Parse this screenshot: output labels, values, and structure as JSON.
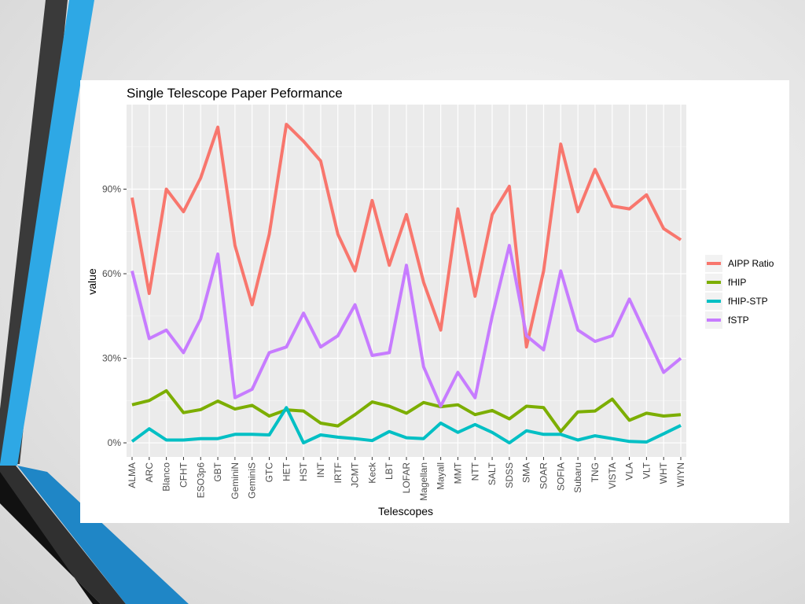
{
  "chart_data": {
    "type": "line",
    "title": "Single Telescope Paper Peformance",
    "xlabel": "Telescopes",
    "ylabel": "value",
    "ylim": [
      -0.05,
      1.2
    ],
    "yticks": [
      0,
      0.3,
      0.6,
      0.9
    ],
    "ytick_labels": [
      "0%",
      "30%",
      "60%",
      "90%"
    ],
    "grid": true,
    "legend_position": "right",
    "categories": [
      "ALMA",
      "ARC",
      "Blanco",
      "CFHT",
      "ESO3p6",
      "GBT",
      "GeminiN",
      "GeminiS",
      "GTC",
      "HET",
      "HST",
      "INT",
      "IRTF",
      "JCMT",
      "Keck",
      "LBT",
      "LOFAR",
      "Magellan",
      "Mayall",
      "MMT",
      "NTT",
      "SALT",
      "SDSS",
      "SMA",
      "SOAR",
      "SOFIA",
      "Subaru",
      "TNG",
      "VISTA",
      "VLA",
      "VLT",
      "WHT",
      "WIYN"
    ],
    "series": [
      {
        "name": "AIPP Ratio",
        "color": "#F8766D",
        "values": [
          0.87,
          0.53,
          0.9,
          0.82,
          0.94,
          1.12,
          0.7,
          0.49,
          0.74,
          1.13,
          1.07,
          1.0,
          0.74,
          0.61,
          0.86,
          0.63,
          0.81,
          0.57,
          0.4,
          0.83,
          0.52,
          0.81,
          0.91,
          0.34,
          0.61,
          1.06,
          0.82,
          0.97,
          0.84,
          0.83,
          0.88,
          0.76,
          0.72
        ]
      },
      {
        "name": "fHIP",
        "color": "#7CAE00",
        "values": [
          0.135,
          0.15,
          0.185,
          0.107,
          0.118,
          0.148,
          0.12,
          0.133,
          0.095,
          0.117,
          0.113,
          0.07,
          0.06,
          0.1,
          0.145,
          0.13,
          0.105,
          0.143,
          0.128,
          0.135,
          0.1,
          0.115,
          0.085,
          0.13,
          0.125,
          0.04,
          0.11,
          0.113,
          0.155,
          0.08,
          0.105,
          0.095,
          0.1
        ]
      },
      {
        "name": "fHIP-STP",
        "color": "#00BFC4",
        "values": [
          0.005,
          0.05,
          0.01,
          0.01,
          0.015,
          0.015,
          0.03,
          0.03,
          0.028,
          0.125,
          0.0,
          0.028,
          0.02,
          0.015,
          0.008,
          0.04,
          0.018,
          0.015,
          0.07,
          0.037,
          0.065,
          0.037,
          0.0,
          0.043,
          0.03,
          0.03,
          0.01,
          0.025,
          0.015,
          0.005,
          0.003,
          0.032,
          0.062
        ]
      },
      {
        "name": "fSTP",
        "color": "#C77CFF",
        "values": [
          0.61,
          0.37,
          0.4,
          0.32,
          0.44,
          0.67,
          0.16,
          0.19,
          0.32,
          0.34,
          0.46,
          0.34,
          0.38,
          0.49,
          0.31,
          0.32,
          0.63,
          0.27,
          0.13,
          0.25,
          0.16,
          0.45,
          0.7,
          0.38,
          0.33,
          0.61,
          0.4,
          0.36,
          0.38,
          0.51,
          0.38,
          0.25,
          0.3
        ]
      }
    ]
  }
}
